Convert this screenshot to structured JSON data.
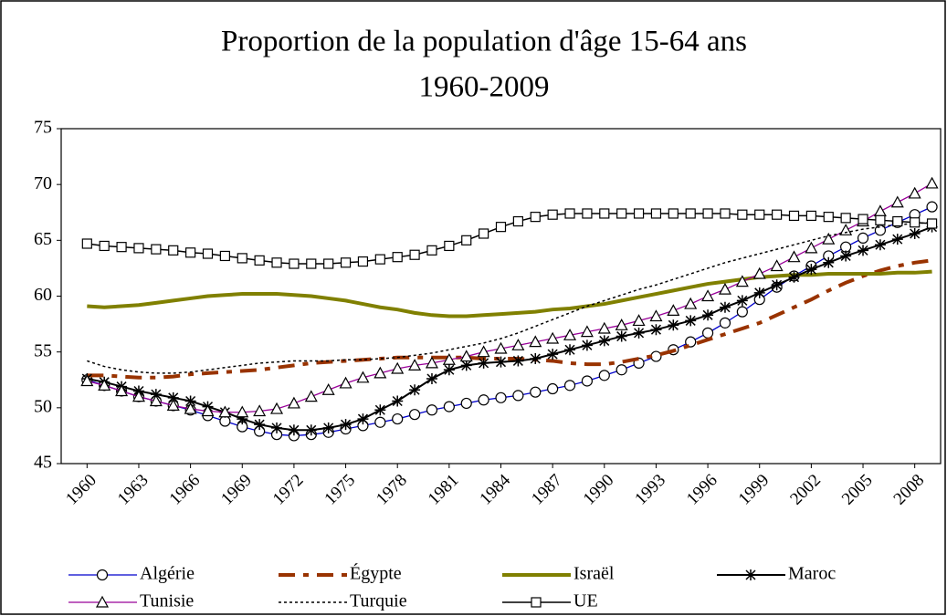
{
  "chart_data": {
    "type": "line",
    "title": [
      "Proportion de la population d'âge 15-64 ans",
      "1960-2009"
    ],
    "x": [
      1960,
      1961,
      1962,
      1963,
      1964,
      1965,
      1966,
      1967,
      1968,
      1969,
      1970,
      1971,
      1972,
      1973,
      1974,
      1975,
      1976,
      1977,
      1978,
      1979,
      1980,
      1981,
      1982,
      1983,
      1984,
      1985,
      1986,
      1987,
      1988,
      1989,
      1990,
      1991,
      1992,
      1993,
      1994,
      1995,
      1996,
      1997,
      1998,
      1999,
      2000,
      2001,
      2002,
      2003,
      2004,
      2005,
      2006,
      2007,
      2008,
      2009
    ],
    "xlim": [
      1958.5,
      2009.5
    ],
    "xticks": [
      1960,
      1963,
      1966,
      1969,
      1972,
      1975,
      1978,
      1981,
      1984,
      1987,
      1990,
      1993,
      1996,
      1999,
      2002,
      2005,
      2008
    ],
    "ylim": [
      45,
      75
    ],
    "yticks": [
      45,
      50,
      55,
      60,
      65,
      70,
      75
    ],
    "grid": false,
    "legend": "bottom",
    "series": [
      {
        "name": "Algérie",
        "color": "#0000cc",
        "values": [
          52.5,
          52.0,
          51.5,
          51.0,
          50.6,
          50.2,
          49.8,
          49.3,
          48.8,
          48.3,
          47.9,
          47.6,
          47.5,
          47.6,
          47.8,
          48.1,
          48.4,
          48.7,
          49.0,
          49.4,
          49.8,
          50.1,
          50.4,
          50.7,
          50.9,
          51.1,
          51.4,
          51.7,
          52.0,
          52.4,
          52.9,
          53.4,
          54.0,
          54.6,
          55.2,
          55.9,
          56.7,
          57.6,
          58.6,
          59.7,
          60.8,
          61.8,
          62.7,
          63.6,
          64.4,
          65.2,
          65.9,
          66.6,
          67.3,
          68.0
        ]
      },
      {
        "name": "Égypte",
        "color": "#993300",
        "values": [
          52.9,
          52.9,
          52.8,
          52.7,
          52.7,
          52.8,
          53.0,
          53.1,
          53.2,
          53.3,
          53.4,
          53.6,
          53.8,
          54.0,
          54.1,
          54.2,
          54.3,
          54.4,
          54.5,
          54.5,
          54.5,
          54.5,
          54.5,
          54.4,
          54.4,
          54.4,
          54.3,
          54.2,
          54.0,
          53.9,
          53.9,
          54.1,
          54.4,
          54.7,
          55.1,
          55.6,
          56.1,
          56.6,
          57.1,
          57.6,
          58.3,
          59.0,
          59.7,
          60.5,
          61.2,
          61.8,
          62.3,
          62.7,
          63.0,
          63.2
        ]
      },
      {
        "name": "Israël",
        "color": "#808000",
        "values": [
          59.1,
          59.0,
          59.1,
          59.2,
          59.4,
          59.6,
          59.8,
          60.0,
          60.1,
          60.2,
          60.2,
          60.2,
          60.1,
          60.0,
          59.8,
          59.6,
          59.3,
          59.0,
          58.8,
          58.5,
          58.3,
          58.2,
          58.2,
          58.3,
          58.4,
          58.5,
          58.6,
          58.8,
          58.9,
          59.1,
          59.3,
          59.6,
          59.9,
          60.2,
          60.5,
          60.8,
          61.1,
          61.3,
          61.5,
          61.7,
          61.8,
          61.9,
          61.9,
          62.0,
          62.0,
          62.0,
          62.0,
          62.1,
          62.1,
          62.2
        ]
      },
      {
        "name": "Maroc",
        "color": "#000000",
        "values": [
          52.6,
          52.3,
          51.9,
          51.5,
          51.2,
          50.9,
          50.6,
          50.1,
          49.6,
          49.0,
          48.5,
          48.2,
          48.0,
          48.0,
          48.2,
          48.5,
          49.0,
          49.8,
          50.6,
          51.6,
          52.6,
          53.4,
          53.8,
          54.0,
          54.1,
          54.2,
          54.4,
          54.8,
          55.2,
          55.6,
          56.0,
          56.4,
          56.7,
          57.0,
          57.4,
          57.8,
          58.3,
          59.0,
          59.6,
          60.3,
          61.0,
          61.7,
          62.4,
          63.0,
          63.6,
          64.1,
          64.6,
          65.1,
          65.6,
          66.2
        ]
      },
      {
        "name": "Tunisie",
        "color": "#990099",
        "values": [
          52.4,
          52.0,
          51.5,
          51.0,
          50.6,
          50.2,
          49.9,
          49.7,
          49.6,
          49.6,
          49.7,
          49.9,
          50.4,
          51.0,
          51.6,
          52.2,
          52.7,
          53.1,
          53.5,
          53.8,
          54.0,
          54.3,
          54.6,
          55.0,
          55.3,
          55.6,
          55.9,
          56.2,
          56.5,
          56.8,
          57.1,
          57.4,
          57.8,
          58.2,
          58.7,
          59.3,
          60.0,
          60.6,
          61.3,
          62.0,
          62.7,
          63.5,
          64.3,
          65.1,
          65.9,
          66.7,
          67.6,
          68.4,
          69.2,
          70.1
        ]
      },
      {
        "name": "Turquie",
        "color": "#000000",
        "values": [
          54.2,
          53.7,
          53.4,
          53.2,
          53.1,
          53.1,
          53.2,
          53.4,
          53.6,
          53.8,
          54.0,
          54.1,
          54.2,
          54.2,
          54.2,
          54.3,
          54.3,
          54.4,
          54.5,
          54.7,
          54.9,
          55.2,
          55.5,
          55.8,
          56.2,
          56.7,
          57.3,
          57.9,
          58.5,
          59.1,
          59.6,
          60.1,
          60.6,
          61.0,
          61.5,
          62.0,
          62.5,
          63.0,
          63.4,
          63.8,
          64.2,
          64.6,
          65.0,
          65.4,
          65.7,
          66.0,
          66.2,
          66.4,
          66.5,
          66.6
        ]
      },
      {
        "name": "UE",
        "color": "#000000",
        "values": [
          64.7,
          64.5,
          64.4,
          64.3,
          64.2,
          64.1,
          63.9,
          63.8,
          63.6,
          63.4,
          63.2,
          63.0,
          62.9,
          62.9,
          62.9,
          63.0,
          63.1,
          63.3,
          63.5,
          63.7,
          64.1,
          64.5,
          65.0,
          65.6,
          66.2,
          66.7,
          67.1,
          67.3,
          67.4,
          67.4,
          67.4,
          67.4,
          67.4,
          67.4,
          67.4,
          67.4,
          67.4,
          67.4,
          67.3,
          67.3,
          67.3,
          67.2,
          67.2,
          67.1,
          67.0,
          66.9,
          66.8,
          66.7,
          66.6,
          66.5
        ]
      }
    ]
  }
}
